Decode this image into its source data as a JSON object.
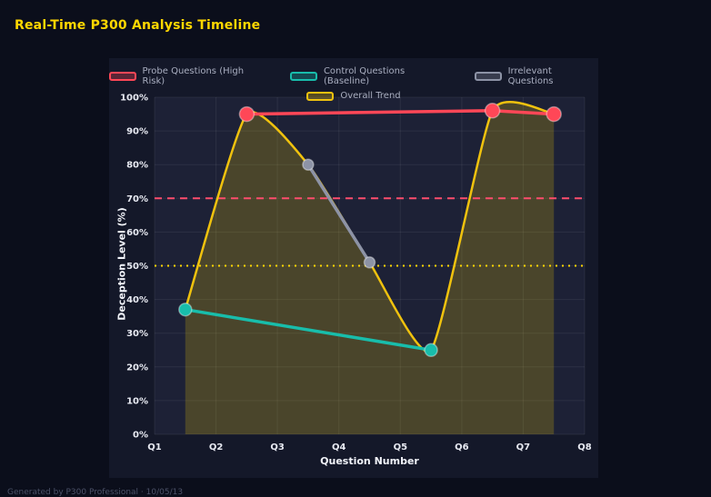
{
  "page": {
    "title": "Real-Time P300 Analysis Timeline",
    "footer": "Generated by P300 Professional · 10/05/13"
  },
  "chart_data": {
    "type": "line",
    "title": "Real-Time P300 Analysis Timeline",
    "xlabel": "Question Number",
    "ylabel": "Deception Level (%)",
    "x_ticks": [
      "Q1",
      "Q2",
      "Q3",
      "Q4",
      "Q5",
      "Q6",
      "Q7",
      "Q8"
    ],
    "x_range": [
      1,
      8
    ],
    "ylim": [
      0,
      100
    ],
    "y_tick_step": 10,
    "y_tick_suffix": "%",
    "grid": true,
    "legend_position": "top",
    "grid_color": "rgba(255,255,255,0.07)",
    "plot_bg": "#1d2136",
    "marker_stroke": "rgba(255,255,255,0.38)",
    "series": [
      {
        "name": "Probe Questions (High Risk)",
        "color": "#ff4757",
        "x": [
          2.5,
          6.5,
          7.5
        ],
        "values": [
          95,
          96,
          95
        ],
        "marker_radius": 8
      },
      {
        "name": "Control Questions (Baseline)",
        "color": "#18bdab",
        "x": [
          1.5,
          5.5
        ],
        "values": [
          37,
          25
        ],
        "marker_radius": 7
      },
      {
        "name": "Irrelevant Questions",
        "color": "#8d93a6",
        "x": [
          3.5,
          4.5
        ],
        "values": [
          80,
          51
        ],
        "marker_radius": 6
      }
    ],
    "trend": {
      "name": "Overall Trend",
      "color": "#f0c20e",
      "fill": "rgba(255,215,0,0.20)",
      "x": [
        1.5,
        2.5,
        3.5,
        4.5,
        5.5,
        6.5,
        7.5
      ],
      "values": [
        37,
        95,
        80,
        51,
        25,
        96,
        95
      ]
    },
    "thresholds": [
      {
        "value": 70,
        "color": "#ff4d6d",
        "dash": "8 6"
      },
      {
        "value": 50,
        "color": "#ffd700",
        "dash": "2 5"
      }
    ]
  }
}
